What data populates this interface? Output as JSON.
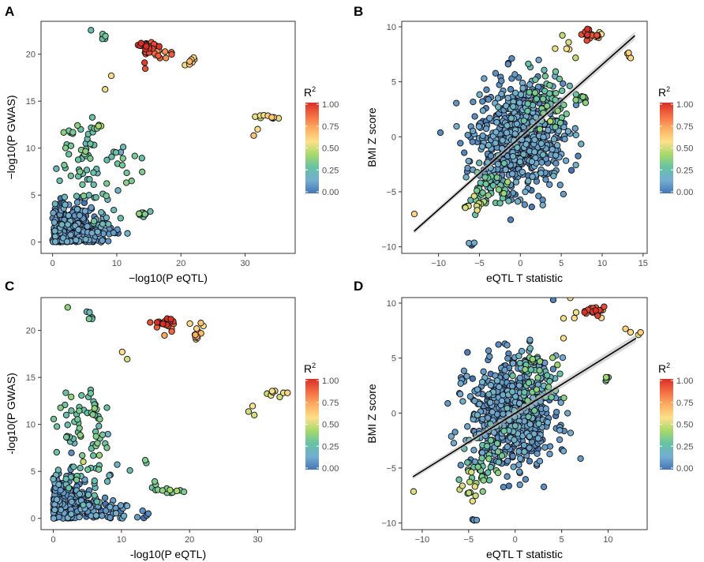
{
  "figure": {
    "panel_letters": [
      "A",
      "B",
      "C",
      "D"
    ]
  },
  "legend": {
    "title": "R",
    "title_sup": "2",
    "ticks": [
      "1.00",
      "0.75",
      "0.50",
      "0.25",
      "0.00"
    ],
    "colors": [
      "#4575b4",
      "#74add1",
      "#66c2a5",
      "#a6d96a",
      "#fee08b",
      "#fdae61",
      "#f46d43",
      "#d73027"
    ]
  },
  "chart_data": [
    {
      "panel": "A",
      "type": "scatter",
      "xlabel": "−log10(P eQTL)",
      "ylabel": "−log10(P GWAS)",
      "xlim": [
        -1.8,
        37.8
      ],
      "ylim": [
        -1.2,
        23.5
      ],
      "xticks": [
        0,
        10,
        20,
        30
      ],
      "yticks": [
        0,
        5,
        10,
        15,
        20
      ],
      "color_by": "R2",
      "clusters": [
        {
          "x": 14.8,
          "y": 20.8,
          "sx": 0.9,
          "sy": 0.3,
          "n": 22,
          "r2": 0.96
        },
        {
          "x": 16.8,
          "y": 20.2,
          "sx": 1.2,
          "sy": 0.3,
          "n": 14,
          "r2": 0.82
        },
        {
          "x": 21.2,
          "y": 19.2,
          "sx": 0.6,
          "sy": 0.3,
          "n": 9,
          "r2": 0.6
        },
        {
          "x": 8.0,
          "y": 21.4,
          "sx": 0.3,
          "sy": 0.3,
          "n": 5,
          "r2": 0.3
        },
        {
          "x": 6.0,
          "y": 22.6,
          "sx": 0.1,
          "sy": 0.1,
          "n": 1,
          "r2": 0.3
        },
        {
          "x": 14.5,
          "y": 18.5,
          "sx": 0.3,
          "sy": 0.4,
          "n": 2,
          "r2": 0.86
        },
        {
          "x": 9.2,
          "y": 17.7,
          "sx": 0.1,
          "sy": 0.1,
          "n": 1,
          "r2": 0.56
        },
        {
          "x": 8.2,
          "y": 16.2,
          "sx": 0.1,
          "sy": 0.1,
          "n": 1,
          "r2": 0.56
        },
        {
          "x": 33.3,
          "y": 13.3,
          "sx": 1.0,
          "sy": 0.2,
          "n": 10,
          "r2": 0.55
        },
        {
          "x": 31.8,
          "y": 11.7,
          "sx": 0.4,
          "sy": 0.3,
          "n": 2,
          "r2": 0.55
        },
        {
          "x": 4.5,
          "y": 9.5,
          "sx": 1.8,
          "sy": 2.0,
          "n": 45,
          "r2": 0.3
        },
        {
          "x": 10.5,
          "y": 9.0,
          "sx": 2.0,
          "sy": 1.2,
          "n": 16,
          "r2": 0.3
        },
        {
          "x": 7.0,
          "y": 12.2,
          "sx": 0.5,
          "sy": 0.2,
          "n": 4,
          "r2": 0.3
        },
        {
          "x": 6.5,
          "y": 5.0,
          "sx": 3.0,
          "sy": 1.3,
          "n": 18,
          "r2": 0.22
        },
        {
          "x": 14.0,
          "y": 3.0,
          "sx": 0.6,
          "sy": 0.15,
          "n": 9,
          "r2": 0.3
        },
        {
          "x": 10.0,
          "y": 2.5,
          "sx": 2.5,
          "sy": 0.6,
          "n": 12,
          "r2": 0.22
        },
        {
          "x": 2.5,
          "y": 1.5,
          "sx": 2.2,
          "sy": 1.4,
          "n": 230,
          "r2": 0.06
        },
        {
          "x": 6.5,
          "y": 1.0,
          "sx": 3.0,
          "sy": 0.8,
          "n": 55,
          "r2": 0.08
        }
      ]
    },
    {
      "panel": "B",
      "type": "scatter",
      "xlabel": "eQTL T statistic",
      "ylabel": "BMI Z score",
      "xlim": [
        -14.5,
        15.5
      ],
      "ylim": [
        -10.6,
        10.5
      ],
      "xticks": [
        -10,
        -5,
        0,
        5,
        10,
        15
      ],
      "yticks": [
        -10,
        -5,
        0,
        5,
        10
      ],
      "color_by": "R2",
      "regression_line": {
        "x": [
          -13.0,
          14.0
        ],
        "y": [
          -8.6,
          9.2
        ]
      },
      "clusters": [
        {
          "x": 0.0,
          "y": 0.0,
          "sx": 2.6,
          "sy": 2.4,
          "n": 700,
          "r2": 0.08
        },
        {
          "x": 3.5,
          "y": 3.2,
          "sx": 1.2,
          "sy": 1.6,
          "n": 50,
          "r2": 0.3
        },
        {
          "x": -4.0,
          "y": -4.5,
          "sx": 1.5,
          "sy": 1.2,
          "n": 40,
          "r2": 0.3
        },
        {
          "x": 8.5,
          "y": 9.3,
          "sx": 0.6,
          "sy": 0.2,
          "n": 16,
          "r2": 0.93
        },
        {
          "x": 9.5,
          "y": 9.2,
          "sx": 0.3,
          "sy": 0.2,
          "n": 4,
          "r2": 0.62
        },
        {
          "x": 5.5,
          "y": 8.0,
          "sx": 0.8,
          "sy": 1.0,
          "n": 6,
          "r2": 0.5
        },
        {
          "x": 7.5,
          "y": 3.2,
          "sx": 0.5,
          "sy": 0.3,
          "n": 8,
          "r2": 0.35
        },
        {
          "x": 13.5,
          "y": 7.4,
          "sx": 0.6,
          "sy": 0.4,
          "n": 4,
          "r2": 0.55
        },
        {
          "x": -5.5,
          "y": -6.2,
          "sx": 0.8,
          "sy": 0.6,
          "n": 10,
          "r2": 0.5
        },
        {
          "x": -13.0,
          "y": -7.0,
          "sx": 0.1,
          "sy": 0.1,
          "n": 1,
          "r2": 0.5
        },
        {
          "x": -5.8,
          "y": -9.7,
          "sx": 0.2,
          "sy": 0.15,
          "n": 4,
          "r2": 0.08
        }
      ]
    },
    {
      "panel": "C",
      "type": "scatter",
      "xlabel": "-log10(P eQTL)",
      "ylabel": "-log10(P GWAS)",
      "xlim": [
        -1.8,
        35.5
      ],
      "ylim": [
        -1.2,
        23.5
      ],
      "xticks": [
        0,
        10,
        20,
        30
      ],
      "yticks": [
        0,
        5,
        10,
        15,
        20
      ],
      "color_by": "R2",
      "clusters": [
        {
          "x": 16.0,
          "y": 20.9,
          "sx": 1.0,
          "sy": 0.2,
          "n": 20,
          "r2": 0.96
        },
        {
          "x": 16.5,
          "y": 20.0,
          "sx": 1.0,
          "sy": 0.5,
          "n": 6,
          "r2": 0.88
        },
        {
          "x": 21.5,
          "y": 19.8,
          "sx": 0.6,
          "sy": 0.6,
          "n": 12,
          "r2": 0.62
        },
        {
          "x": 5.3,
          "y": 21.5,
          "sx": 0.3,
          "sy": 0.4,
          "n": 5,
          "r2": 0.3
        },
        {
          "x": 2.2,
          "y": 22.5,
          "sx": 0.1,
          "sy": 0.1,
          "n": 1,
          "r2": 0.3
        },
        {
          "x": 10.3,
          "y": 17.0,
          "sx": 0.2,
          "sy": 0.7,
          "n": 2,
          "r2": 0.56
        },
        {
          "x": 32.5,
          "y": 13.3,
          "sx": 1.0,
          "sy": 0.2,
          "n": 9,
          "r2": 0.55
        },
        {
          "x": 28.0,
          "y": 11.6,
          "sx": 1.2,
          "sy": 0.4,
          "n": 3,
          "r2": 0.55
        },
        {
          "x": 3.5,
          "y": 10.0,
          "sx": 1.5,
          "sy": 1.8,
          "n": 40,
          "r2": 0.3
        },
        {
          "x": 6.5,
          "y": 9.0,
          "sx": 1.0,
          "sy": 1.5,
          "n": 22,
          "r2": 0.3
        },
        {
          "x": 13.5,
          "y": 6.2,
          "sx": 0.2,
          "sy": 0.15,
          "n": 2,
          "r2": 0.3
        },
        {
          "x": 17.0,
          "y": 2.9,
          "sx": 1.2,
          "sy": 0.1,
          "n": 12,
          "r2": 0.35
        },
        {
          "x": 15.0,
          "y": 3.6,
          "sx": 0.5,
          "sy": 0.3,
          "n": 3,
          "r2": 0.3
        },
        {
          "x": 5.0,
          "y": 4.0,
          "sx": 2.5,
          "sy": 1.5,
          "n": 30,
          "r2": 0.22
        },
        {
          "x": 2.0,
          "y": 1.6,
          "sx": 1.8,
          "sy": 1.5,
          "n": 230,
          "r2": 0.06
        },
        {
          "x": 6.5,
          "y": 1.0,
          "sx": 2.8,
          "sy": 0.8,
          "n": 50,
          "r2": 0.08
        },
        {
          "x": 13.0,
          "y": 0.6,
          "sx": 0.8,
          "sy": 0.2,
          "n": 4,
          "r2": 0.08
        }
      ]
    },
    {
      "panel": "D",
      "type": "scatter",
      "xlabel": "eQTL T statistic",
      "ylabel": "BMI Z score",
      "xlim": [
        -12.2,
        14.2
      ],
      "ylim": [
        -10.6,
        10.5
      ],
      "xticks": [
        -10,
        -5,
        0,
        5,
        10
      ],
      "yticks": [
        -10,
        -5,
        0,
        5,
        10
      ],
      "color_by": "R2",
      "regression_line": {
        "x": [
          -11.0,
          13.0
        ],
        "y": [
          -5.8,
          6.8
        ]
      },
      "clusters": [
        {
          "x": -0.3,
          "y": 0.0,
          "sx": 2.3,
          "sy": 2.4,
          "n": 650,
          "r2": 0.08
        },
        {
          "x": 2.5,
          "y": 3.5,
          "sx": 1.2,
          "sy": 1.5,
          "n": 50,
          "r2": 0.3
        },
        {
          "x": -3.5,
          "y": -4.5,
          "sx": 1.2,
          "sy": 1.2,
          "n": 40,
          "r2": 0.3
        },
        {
          "x": 8.5,
          "y": 9.3,
          "sx": 0.6,
          "sy": 0.2,
          "n": 16,
          "r2": 0.93
        },
        {
          "x": 9.4,
          "y": 9.2,
          "sx": 0.2,
          "sy": 0.2,
          "n": 3,
          "r2": 0.62
        },
        {
          "x": 6.0,
          "y": 8.0,
          "sx": 0.6,
          "sy": 1.0,
          "n": 5,
          "r2": 0.5
        },
        {
          "x": 10.0,
          "y": 3.3,
          "sx": 0.3,
          "sy": 0.2,
          "n": 5,
          "r2": 0.35
        },
        {
          "x": 12.8,
          "y": 7.4,
          "sx": 0.4,
          "sy": 0.3,
          "n": 4,
          "r2": 0.55
        },
        {
          "x": -5.0,
          "y": -6.5,
          "sx": 0.6,
          "sy": 0.6,
          "n": 10,
          "r2": 0.5
        },
        {
          "x": -11.0,
          "y": -7.0,
          "sx": 0.1,
          "sy": 0.1,
          "n": 1,
          "r2": 0.5
        },
        {
          "x": -4.5,
          "y": -9.7,
          "sx": 0.2,
          "sy": 0.15,
          "n": 4,
          "r2": 0.08
        }
      ]
    }
  ]
}
